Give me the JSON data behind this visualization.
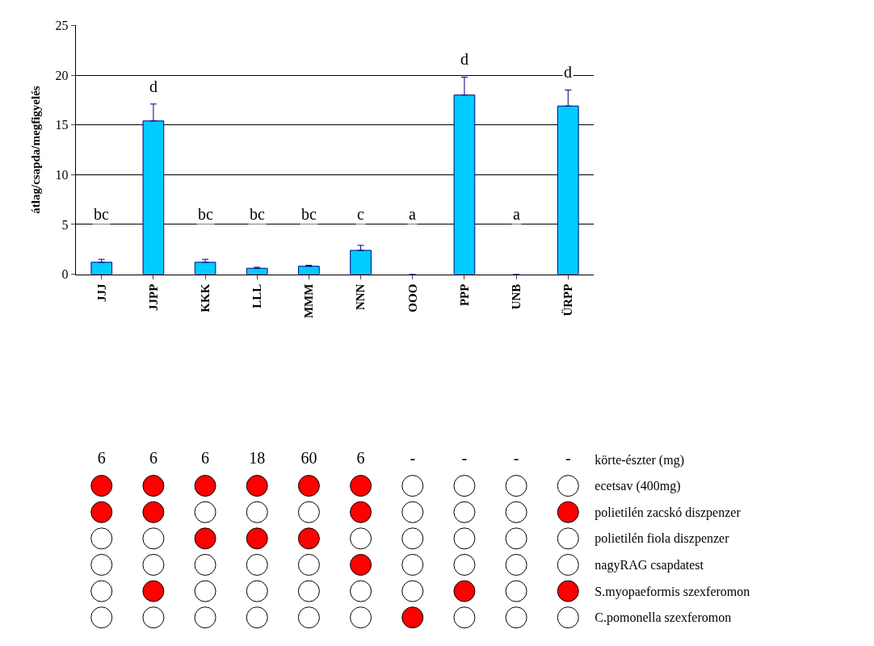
{
  "chart_data": [
    {
      "type": "bar",
      "ylabel": "átlag/csapda/megfigyelés",
      "categories": [
        "JJJ",
        "JJPP",
        "KKK",
        "LLL",
        "MMM",
        "NNN",
        "OOO",
        "PPP",
        "UNB",
        "ÜRPP"
      ],
      "values": [
        1.2,
        15.4,
        1.2,
        0.6,
        0.8,
        2.4,
        0,
        18,
        0,
        16.9
      ],
      "errors": [
        [
          1.2,
          1.5
        ],
        [
          15.4,
          17.1
        ],
        [
          1.2,
          1.5
        ],
        [
          0.6,
          0.7
        ],
        [
          0.8,
          0.9
        ],
        [
          2.4,
          2.9
        ],
        null,
        [
          18,
          19.8
        ],
        null,
        [
          16.9,
          18.5
        ]
      ],
      "color": "#00ccff",
      "ylim": [
        0,
        25
      ],
      "yticks": [
        0,
        5,
        10,
        15,
        20,
        25
      ],
      "grid": "y",
      "annotations": [
        "bc",
        "d",
        "bc",
        "bc",
        "bc",
        "c",
        "a",
        "d",
        "a",
        "d"
      ]
    },
    {
      "type": "other",
      "categories": [
        null,
        null,
        null,
        null,
        null,
        null,
        null,
        null,
        null,
        null
      ],
      "y_categories": [
        "körte-észter (mg)",
        "ecetsav (400mg)",
        "polietilén zacskó diszpenzer",
        "polietilén fiola diszpenzer",
        "nagyRAG csapdatest",
        "S.myopaeformis szexferomon",
        "C.pomonella szexferomon"
      ],
      "cell_labels": [
        [
          "6",
          "6",
          "6",
          "18",
          "60",
          "6",
          "-",
          "-",
          "-",
          "-"
        ],
        [
          null,
          null,
          null,
          null,
          null,
          null,
          null,
          null,
          null,
          null
        ],
        [
          null,
          null,
          null,
          null,
          null,
          null,
          null,
          null,
          null,
          null
        ],
        [
          null,
          null,
          null,
          null,
          null,
          null,
          null,
          null,
          null,
          null
        ],
        [
          null,
          null,
          null,
          null,
          null,
          null,
          null,
          null,
          null,
          null
        ],
        [
          null,
          null,
          null,
          null,
          null,
          null,
          null,
          null,
          null,
          null
        ],
        [
          null,
          null,
          null,
          null,
          null,
          null,
          null,
          null,
          null,
          null
        ]
      ],
      "colors": [
        [
          null,
          null,
          null,
          null,
          null,
          null,
          null,
          null,
          null,
          null
        ],
        [
          "#ff0000",
          "#ff0000",
          "#ff0000",
          "#ff0000",
          "#ff0000",
          "#ff0000",
          "#ffffff",
          "#ffffff",
          "#ffffff",
          "#ffffff"
        ],
        [
          "#ff0000",
          "#ff0000",
          "#ffffff",
          "#ffffff",
          "#ffffff",
          "#ff0000",
          "#ffffff",
          "#ffffff",
          "#ffffff",
          "#ff0000"
        ],
        [
          "#ffffff",
          "#ffffff",
          "#ff0000",
          "#ff0000",
          "#ff0000",
          "#ffffff",
          "#ffffff",
          "#ffffff",
          "#ffffff",
          "#ffffff"
        ],
        [
          "#ffffff",
          "#ffffff",
          "#ffffff",
          "#ffffff",
          "#ffffff",
          "#ff0000",
          "#ffffff",
          "#ffffff",
          "#ffffff",
          "#ffffff"
        ],
        [
          "#ffffff",
          "#ff0000",
          "#ffffff",
          "#ffffff",
          "#ffffff",
          "#ffffff",
          "#ffffff",
          "#ff0000",
          "#ffffff",
          "#ff0000"
        ],
        [
          "#ffffff",
          "#ffffff",
          "#ffffff",
          "#ffffff",
          "#ffffff",
          "#ffffff",
          "#ff0000",
          "#ffffff",
          "#ffffff",
          "#ffffff"
        ]
      ]
    }
  ]
}
